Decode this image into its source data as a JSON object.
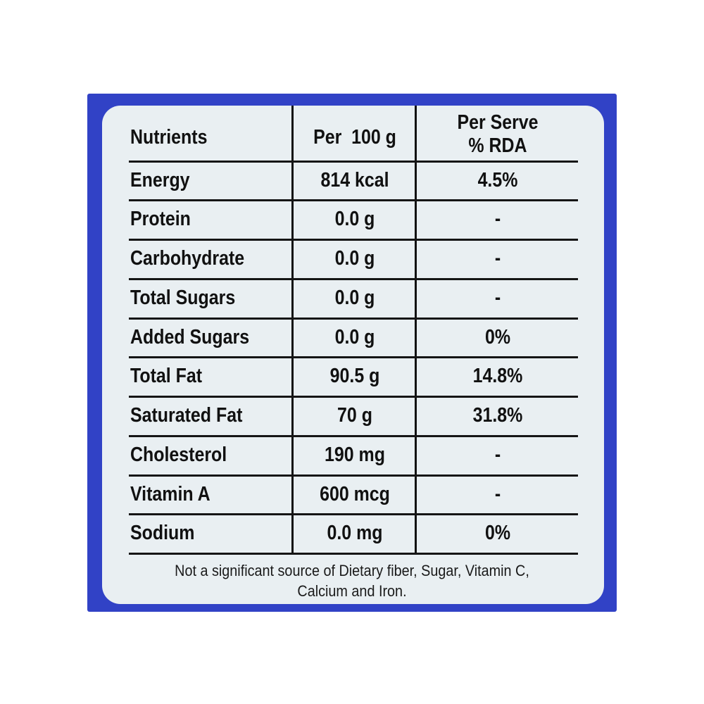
{
  "colors": {
    "border": "#3142c6",
    "panel": "#e9eff2",
    "text": "#111111"
  },
  "header": {
    "nutrients": "Nutrients",
    "per100": "Per  100 g",
    "perServe1": "Per Serve",
    "perServe2": "% RDA"
  },
  "rows": [
    {
      "nutrient": "Energy",
      "per100": "814 kcal",
      "rda": "4.5%"
    },
    {
      "nutrient": "Protein",
      "per100": "0.0 g",
      "rda": "-"
    },
    {
      "nutrient": "Carbohydrate",
      "per100": "0.0 g",
      "rda": "-"
    },
    {
      "nutrient": "Total Sugars",
      "per100": "0.0 g",
      "rda": "-"
    },
    {
      "nutrient": "Added Sugars",
      "per100": "0.0 g",
      "rda": "0%"
    },
    {
      "nutrient": "Total Fat",
      "per100": "90.5 g",
      "rda": "14.8%"
    },
    {
      "nutrient": "Saturated Fat",
      "per100": "70 g",
      "rda": "31.8%"
    },
    {
      "nutrient": "Cholesterol",
      "per100": "190 mg",
      "rda": "-"
    },
    {
      "nutrient": "Vitamin A",
      "per100": "600 mcg",
      "rda": "-"
    },
    {
      "nutrient": "Sodium",
      "per100": "0.0 mg",
      "rda": "0%"
    }
  ],
  "footer": {
    "line1": "Not a significant source of Dietary fiber, Sugar, Vitamin C,",
    "line2": "Calcium and Iron."
  }
}
